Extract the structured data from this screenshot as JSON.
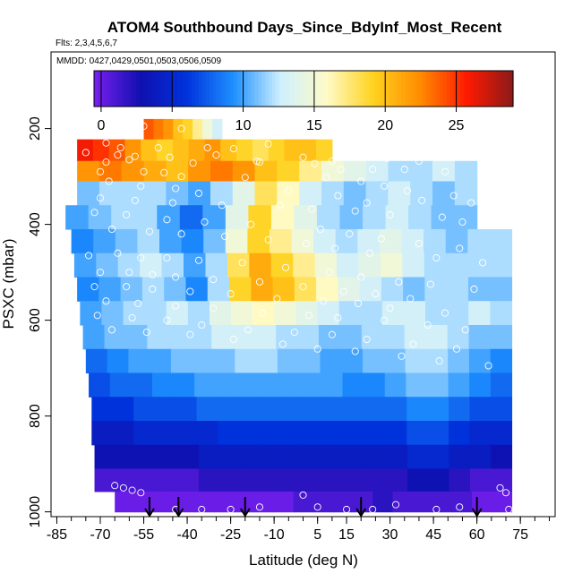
{
  "chart_data": {
    "type": "heatmap",
    "title": "ATOM4 Southbound Days_Since_BdyInf_Most_Recent",
    "subtitle_flights": "Flts: 2,3,4,5,6,7",
    "subtitle_dates": "MMDD: 0427,0429,0501,0503,0506,0509",
    "xlabel": "Latitude (deg N)",
    "ylabel": "PSXC (mbar)",
    "xlim": [
      -87,
      87
    ],
    "ylim": [
      1010,
      40
    ],
    "y_reversed": true,
    "x_ticks": [
      -85,
      -70,
      -55,
      -40,
      -25,
      -10,
      5,
      15,
      30,
      45,
      60,
      75
    ],
    "x_tick_labels": [
      "-85",
      "-70",
      "-55",
      "-40",
      "-25",
      "-10",
      "5",
      "15",
      "30",
      "45",
      "60",
      "75"
    ],
    "y_ticks": [
      200,
      400,
      600,
      800,
      1000
    ],
    "y_tick_labels": [
      "200",
      "400",
      "600",
      "800",
      "1000"
    ],
    "colorbar": {
      "min": -0.5,
      "max": 29,
      "ticks": [
        0,
        5,
        10,
        15,
        20,
        25
      ],
      "tick_labels": [
        "0",
        "5",
        "10",
        "15",
        "20",
        "25"
      ],
      "colors": [
        "#7a1ff0",
        "#1010b0",
        "#0033dd",
        "#1e90ff",
        "#cdefff",
        "#fffbc8",
        "#ffd21f",
        "#ff8c00",
        "#ff1a00",
        "#8b1a1a"
      ]
    },
    "bands": [
      {
        "p": 195,
        "lat_start": -55,
        "lat_end": -28,
        "values": [
          24,
          23,
          22,
          20,
          19,
          17,
          15,
          13
        ]
      },
      {
        "p": 250,
        "lat_start": -78,
        "lat_end": 10,
        "values": [
          26,
          25,
          24,
          22,
          20,
          19,
          20,
          21,
          22,
          20,
          19,
          18,
          19,
          20,
          20,
          19
        ]
      },
      {
        "p": 285,
        "lat_start": -78,
        "lat_end": 60,
        "values": [
          22,
          23,
          22,
          21,
          20,
          22,
          23,
          22,
          20,
          19,
          17,
          15,
          14,
          13,
          12,
          12,
          13,
          12
        ]
      },
      {
        "p": 335,
        "lat_start": -78,
        "lat_end": 60,
        "values": [
          11,
          12,
          12,
          12,
          11,
          10,
          12,
          14,
          18,
          16,
          13,
          12,
          11,
          12,
          13,
          12,
          11,
          12
        ]
      },
      {
        "p": 385,
        "lat_start": -82,
        "lat_end": 60,
        "values": [
          10,
          11,
          12,
          12,
          10,
          8,
          10,
          14,
          19,
          16,
          14,
          12,
          11,
          12,
          13,
          12,
          11,
          11
        ]
      },
      {
        "p": 435,
        "lat_start": -80,
        "lat_end": 72,
        "values": [
          9,
          10,
          11,
          12,
          10,
          9,
          11,
          15,
          19,
          17,
          15,
          13,
          12,
          13,
          14,
          13,
          12,
          11,
          12,
          12
        ]
      },
      {
        "p": 485,
        "lat_start": -79,
        "lat_end": 72,
        "values": [
          10,
          11,
          12,
          13,
          12,
          10,
          12,
          18,
          21,
          19,
          17,
          15,
          13,
          14,
          15,
          13,
          12,
          12,
          12,
          12
        ]
      },
      {
        "p": 535,
        "lat_start": -78,
        "lat_end": 72,
        "values": [
          9,
          10,
          11,
          12,
          11,
          9,
          12,
          19,
          21,
          20,
          18,
          16,
          14,
          13,
          12,
          11,
          12,
          12,
          11,
          11
        ]
      },
      {
        "p": 585,
        "lat_start": -77,
        "lat_end": 72,
        "values": [
          10,
          11,
          12,
          12,
          13,
          12,
          14,
          15,
          16,
          15,
          14,
          13,
          12,
          12,
          13,
          13,
          12,
          12,
          13,
          12
        ]
      },
      {
        "p": 635,
        "lat_start": -76,
        "lat_end": 72,
        "values": [
          10,
          11,
          11,
          12,
          12,
          12,
          13,
          13,
          13,
          12,
          12,
          11,
          11,
          12,
          12,
          13,
          13,
          12,
          11,
          11
        ]
      },
      {
        "p": 685,
        "lat_start": -75,
        "lat_end": 72,
        "values": [
          8,
          9,
          10,
          10,
          11,
          11,
          11,
          12,
          12,
          11,
          11,
          10,
          10,
          11,
          11,
          12,
          12,
          11,
          10,
          9
        ]
      },
      {
        "p": 735,
        "lat_start": -74,
        "lat_end": 72,
        "values": [
          7,
          8,
          8,
          9,
          9,
          10,
          10,
          10,
          10,
          10,
          10,
          10,
          9,
          9,
          10,
          11,
          11,
          10,
          9,
          8
        ]
      },
      {
        "p": 785,
        "lat_start": -73,
        "lat_end": 72,
        "values": [
          6,
          6,
          7,
          7,
          7,
          8,
          8,
          8,
          8,
          8,
          8,
          8,
          8,
          8,
          8,
          9,
          9,
          8,
          7,
          7
        ]
      },
      {
        "p": 835,
        "lat_start": -73,
        "lat_end": 72,
        "values": [
          4,
          4,
          5,
          5,
          5,
          5,
          6,
          6,
          6,
          6,
          6,
          6,
          6,
          6,
          6,
          7,
          7,
          6,
          5,
          5
        ]
      },
      {
        "p": 885,
        "lat_start": -72,
        "lat_end": 72,
        "values": [
          3,
          3,
          3,
          3,
          3,
          4,
          4,
          4,
          4,
          4,
          4,
          4,
          4,
          4,
          4,
          5,
          5,
          4,
          4,
          3
        ]
      },
      {
        "p": 935,
        "lat_start": -72,
        "lat_end": 72,
        "values": [
          1,
          1,
          1,
          1,
          1,
          2,
          2,
          2,
          2,
          2,
          2,
          2,
          2,
          2,
          2,
          3,
          3,
          2,
          1,
          1
        ]
      },
      {
        "p": 980,
        "lat_start": -65,
        "lat_end": 72,
        "values": [
          0,
          0,
          0,
          0,
          0,
          0,
          0,
          0,
          0,
          1,
          1,
          1,
          1,
          2,
          1,
          1,
          1,
          1,
          0,
          0
        ]
      }
    ],
    "sample_points": [
      [
        -55,
        195
      ],
      [
        -42,
        200
      ],
      [
        -21,
        215
      ],
      [
        -68,
        230
      ],
      [
        -63,
        240
      ],
      [
        -50,
        240
      ],
      [
        -33,
        240
      ],
      [
        -24,
        242
      ],
      [
        -12,
        232
      ],
      [
        25,
        240
      ],
      [
        -75,
        250
      ],
      [
        -64,
        255
      ],
      [
        -58,
        258
      ],
      [
        -46,
        260
      ],
      [
        -30,
        255
      ],
      [
        -16,
        268
      ],
      [
        0,
        260
      ],
      [
        10,
        268
      ],
      [
        24,
        285
      ],
      [
        -68,
        270
      ],
      [
        -60,
        265
      ],
      [
        -38,
        272
      ],
      [
        -15,
        270
      ],
      [
        4,
        273
      ],
      [
        13,
        285
      ],
      [
        29,
        262
      ],
      [
        40,
        268
      ],
      [
        49,
        290
      ],
      [
        35,
        285
      ],
      [
        -70,
        290
      ],
      [
        -55,
        290
      ],
      [
        -48,
        292
      ],
      [
        -42,
        300
      ],
      [
        -20,
        302
      ],
      [
        8,
        302
      ],
      [
        20,
        310
      ],
      [
        28,
        320
      ],
      [
        36,
        330
      ],
      [
        52,
        340
      ],
      [
        -67,
        310
      ],
      [
        -56,
        320
      ],
      [
        -44,
        325
      ],
      [
        -36,
        335
      ],
      [
        -5,
        330
      ],
      [
        12,
        340
      ],
      [
        22,
        355
      ],
      [
        41,
        350
      ],
      [
        58,
        355
      ],
      [
        -70,
        345
      ],
      [
        -58,
        350
      ],
      [
        -45,
        355
      ],
      [
        -28,
        360
      ],
      [
        -8,
        360
      ],
      [
        3,
        368
      ],
      [
        18,
        372
      ],
      [
        30,
        380
      ],
      [
        48,
        385
      ],
      [
        55,
        395
      ],
      [
        -72,
        375
      ],
      [
        -61,
        380
      ],
      [
        -47,
        390
      ],
      [
        -34,
        395
      ],
      [
        -18,
        400
      ],
      [
        6,
        410
      ],
      [
        16,
        420
      ],
      [
        27,
        430
      ],
      [
        40,
        440
      ],
      [
        54,
        450
      ],
      [
        -66,
        410
      ],
      [
        -53,
        415
      ],
      [
        -42,
        420
      ],
      [
        -27,
        425
      ],
      [
        -12,
        432
      ],
      [
        1,
        440
      ],
      [
        11,
        450
      ],
      [
        23,
        460
      ],
      [
        46,
        470
      ],
      [
        62,
        480
      ],
      [
        -74,
        465
      ],
      [
        -64,
        460
      ],
      [
        -56,
        470
      ],
      [
        -47,
        470
      ],
      [
        -36,
        475
      ],
      [
        -21,
        480
      ],
      [
        -6,
        490
      ],
      [
        9,
        500
      ],
      [
        20,
        510
      ],
      [
        33,
        520
      ],
      [
        44,
        525
      ],
      [
        59,
        535
      ],
      [
        -70,
        500
      ],
      [
        -60,
        500
      ],
      [
        -52,
        505
      ],
      [
        -44,
        510
      ],
      [
        -31,
        515
      ],
      [
        -15,
        520
      ],
      [
        0,
        530
      ],
      [
        14,
        540
      ],
      [
        25,
        545
      ],
      [
        37,
        555
      ],
      [
        -72,
        530
      ],
      [
        -61,
        530
      ],
      [
        -52,
        535
      ],
      [
        -39,
        540
      ],
      [
        -25,
        545
      ],
      [
        -9,
        555
      ],
      [
        7,
        560
      ],
      [
        19,
        565
      ],
      [
        30,
        575
      ],
      [
        49,
        585
      ],
      [
        -68,
        560
      ],
      [
        -57,
        565
      ],
      [
        -44,
        570
      ],
      [
        -31,
        575
      ],
      [
        -14,
        585
      ],
      [
        2,
        590
      ],
      [
        12,
        595
      ],
      [
        28,
        600
      ],
      [
        43,
        610
      ],
      [
        56,
        620
      ],
      [
        -71,
        590
      ],
      [
        -59,
        595
      ],
      [
        -47,
        600
      ],
      [
        -35,
        610
      ],
      [
        -19,
        620
      ],
      [
        -3,
        625
      ],
      [
        10,
        630
      ],
      [
        22,
        640
      ],
      [
        38,
        650
      ],
      [
        53,
        660
      ],
      [
        -66,
        620
      ],
      [
        -54,
        625
      ],
      [
        -39,
        630
      ],
      [
        -24,
        640
      ],
      [
        -7,
        650
      ],
      [
        5,
        660
      ],
      [
        18,
        665
      ],
      [
        34,
        675
      ],
      [
        47,
        685
      ],
      [
        64,
        695
      ],
      [
        -65,
        945
      ],
      [
        -62,
        950
      ],
      [
        -59,
        955
      ],
      [
        -56,
        960
      ],
      [
        -44,
        995
      ],
      [
        -35,
        995
      ],
      [
        -25,
        995
      ],
      [
        -15,
        990
      ],
      [
        0,
        965
      ],
      [
        5,
        990
      ],
      [
        15,
        995
      ],
      [
        24,
        995
      ],
      [
        32,
        985
      ],
      [
        46,
        995
      ],
      [
        54,
        990
      ],
      [
        68,
        950
      ],
      [
        70,
        960
      ],
      [
        71,
        995
      ]
    ],
    "arrows_lat": [
      -53,
      -43,
      -20,
      20,
      60
    ]
  }
}
